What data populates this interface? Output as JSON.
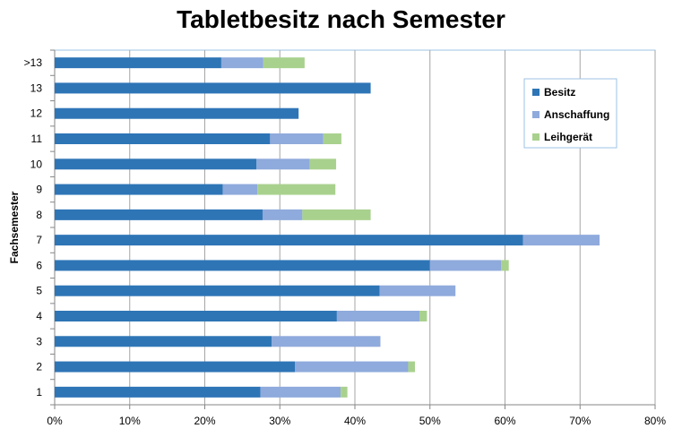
{
  "chart_data": {
    "type": "bar",
    "orientation": "horizontal",
    "stacked": true,
    "title": "Tabletbesitz nach Semester",
    "xlabel": "",
    "ylabel": "Fachsemester",
    "xlim": [
      0,
      80
    ],
    "xticks": [
      "0%",
      "10%",
      "20%",
      "30%",
      "40%",
      "50%",
      "60%",
      "70%",
      "80%"
    ],
    "categories": [
      "1",
      "2",
      "3",
      "4",
      "5",
      "6",
      "7",
      "8",
      "9",
      "10",
      "11",
      "12",
      "13",
      ">13"
    ],
    "series": [
      {
        "name": "Besitz",
        "color": "#2E75B6",
        "values": [
          27.4,
          32.0,
          28.9,
          37.6,
          43.3,
          50.0,
          62.4,
          27.7,
          22.4,
          26.9,
          28.7,
          32.5,
          42.1,
          22.2
        ]
      },
      {
        "name": "Anschaffung",
        "color": "#8FAADC",
        "values": [
          10.7,
          15.1,
          14.5,
          11.0,
          10.1,
          9.5,
          10.2,
          5.3,
          4.6,
          7.1,
          7.1,
          0,
          0,
          5.6
        ]
      },
      {
        "name": "Leihgerät",
        "color": "#A9D18E",
        "values": [
          0.9,
          0.9,
          0,
          1.0,
          0,
          1.0,
          0,
          9.1,
          10.4,
          3.5,
          2.4,
          0,
          0,
          5.5
        ]
      }
    ],
    "grid": true,
    "legend": "top-right"
  }
}
